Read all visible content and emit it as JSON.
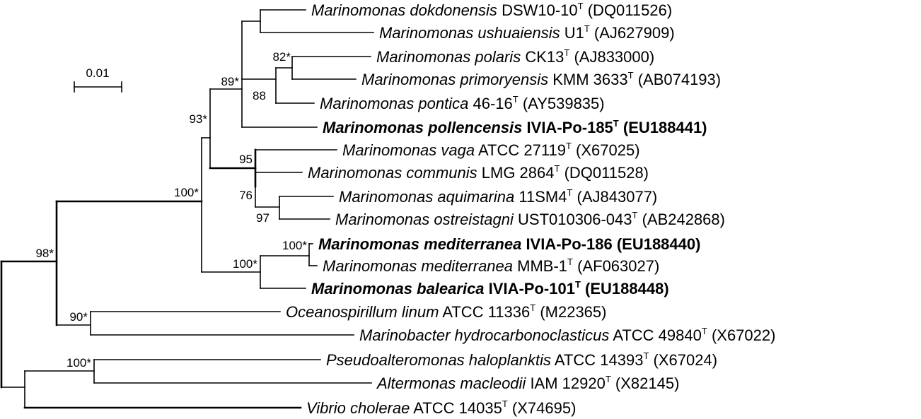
{
  "scale_bar": {
    "label": "0.01"
  },
  "taxa": [
    {
      "genus_species": "Marinomonas dokdonensis",
      "strain": "DSW10-10",
      "type_strain": true,
      "accession": "(DQ011526)",
      "bold": false
    },
    {
      "genus_species": "Marinomonas ushuaiensis",
      "strain": "U1",
      "type_strain": true,
      "accession": "(AJ627909)",
      "bold": false
    },
    {
      "genus_species": "Marinomonas polaris",
      "strain": "CK13",
      "type_strain": true,
      "accession": "(AJ833000)",
      "bold": false
    },
    {
      "genus_species": "Marinomonas primoryensis",
      "strain": "KMM 3633",
      "type_strain": true,
      "accession": "(AB074193)",
      "bold": false
    },
    {
      "genus_species": "Marinomonas pontica",
      "strain": "46-16",
      "type_strain": true,
      "accession": "(AY539835)",
      "bold": false
    },
    {
      "genus_species": "Marinomonas pollencensis",
      "strain": "IVIA-Po-185",
      "type_strain": true,
      "accession": "(EU188441)",
      "bold": true
    },
    {
      "genus_species": "Marinomonas vaga",
      "strain": "ATCC 27119",
      "type_strain": true,
      "accession": "(X67025)",
      "bold": false
    },
    {
      "genus_species": "Marinomonas communis",
      "strain": "LMG 2864",
      "type_strain": true,
      "accession": "(DQ011528)",
      "bold": false
    },
    {
      "genus_species": "Marinomonas aquimarina",
      "strain": "11SM4",
      "type_strain": true,
      "accession": "(AJ843077)",
      "bold": false
    },
    {
      "genus_species": "Marinomonas ostreistagni",
      "strain": "UST010306-043",
      "type_strain": true,
      "accession": "(AB242868)",
      "bold": false
    },
    {
      "genus_species": "Marinomonas mediterranea",
      "strain": "IVIA-Po-186",
      "type_strain": false,
      "accession": "(EU188440)",
      "bold": true
    },
    {
      "genus_species": "Marinomonas mediterranea",
      "strain": "MMB-1",
      "type_strain": true,
      "accession": "(AF063027)",
      "bold": false
    },
    {
      "genus_species": "Marinomonas balearica",
      "strain": "IVIA-Po-101",
      "type_strain": true,
      "accession": "(EU188448)",
      "bold": true
    },
    {
      "genus_species": "Oceanospirillum linum",
      "strain": "ATCC 11336",
      "type_strain": true,
      "accession": "(M22365)",
      "bold": false
    },
    {
      "genus_species": "Marinobacter hydrocarbonoclasticus",
      "strain": "ATCC 49840",
      "type_strain": true,
      "accession": "(X67022)",
      "bold": false
    },
    {
      "genus_species": "Pseudoalteromonas haloplanktis",
      "strain": "ATCC 14393",
      "type_strain": true,
      "accession": "(X67024)",
      "bold": false
    },
    {
      "genus_species": "Altermonas macleodii",
      "strain": "IAM 12920",
      "type_strain": true,
      "accession": "(X82145)",
      "bold": false
    },
    {
      "genus_species": "Vibrio cholerae",
      "strain": "ATCC 14035",
      "type_strain": true,
      "accession": "(X74695)",
      "bold": false
    }
  ],
  "type_superscript": "T",
  "bootstrap": {
    "b82": "82*",
    "b88": "88",
    "b89": "89*",
    "b93": "93*",
    "b95": "95",
    "b76": "76",
    "b97": "97",
    "b100_inner": "100*",
    "b100_med": "100*",
    "b100_marino": "100*",
    "b98": "98*",
    "b90": "90*",
    "b100_pseudo": "100*"
  }
}
